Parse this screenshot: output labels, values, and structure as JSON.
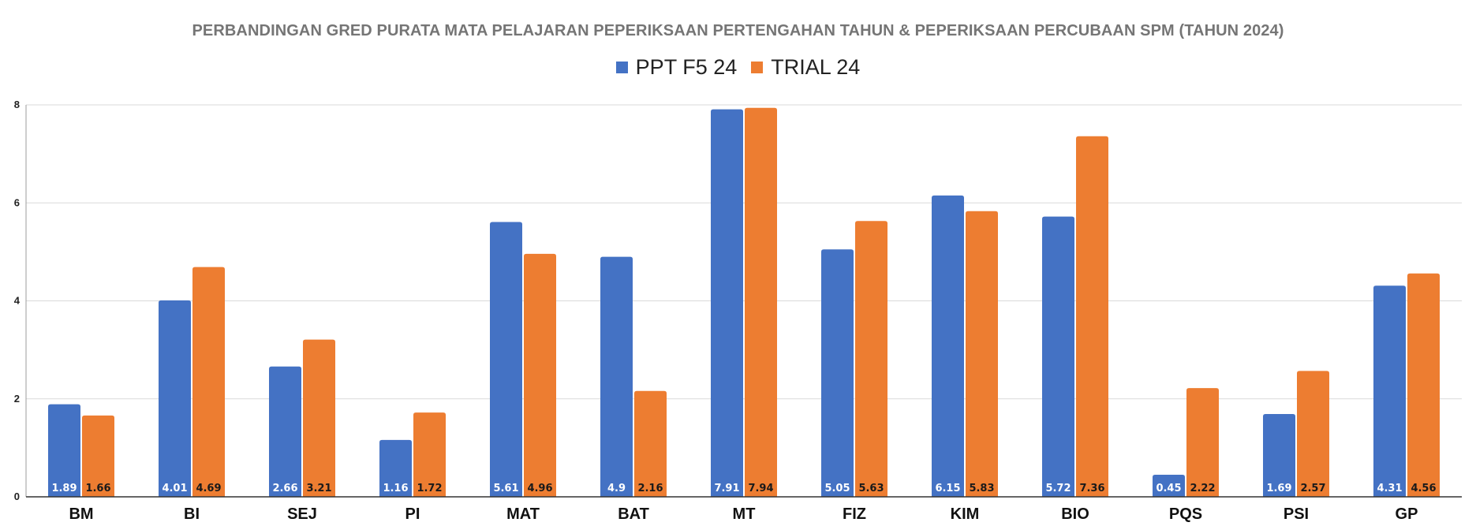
{
  "chart_data": {
    "type": "bar",
    "title": "PERBANDINGAN GRED PURATA MATA PELAJARAN PEPERIKSAAN PERTENGAHAN TAHUN & PEPERIKSAAN PERCUBAAN SPM (TAHUN 2024)",
    "xlabel": "",
    "ylabel": "",
    "ylim": [
      0,
      8
    ],
    "yticks": [
      "0",
      "2",
      "4",
      "6",
      "8"
    ],
    "grid": true,
    "legend_position": "top",
    "categories": [
      "BM",
      "BI",
      "SEJ",
      "PI",
      "MAT",
      "BAT",
      "MT",
      "FIZ",
      "KIM",
      "BIO",
      "PQS",
      "PSI",
      "GP"
    ],
    "series": [
      {
        "name": "PPT F5 24",
        "color": "#4472c4",
        "label_color": "#ffffff",
        "values": [
          1.89,
          4.01,
          2.66,
          1.16,
          5.61,
          4.9,
          7.91,
          5.05,
          6.15,
          5.72,
          0.45,
          1.69,
          4.31
        ]
      },
      {
        "name": "TRIAL 24",
        "color": "#ed7d31",
        "label_color": "#1a1a1a",
        "values": [
          1.66,
          4.69,
          3.21,
          1.72,
          4.96,
          2.16,
          7.94,
          5.63,
          5.83,
          7.36,
          2.22,
          2.57,
          4.56
        ]
      }
    ]
  }
}
